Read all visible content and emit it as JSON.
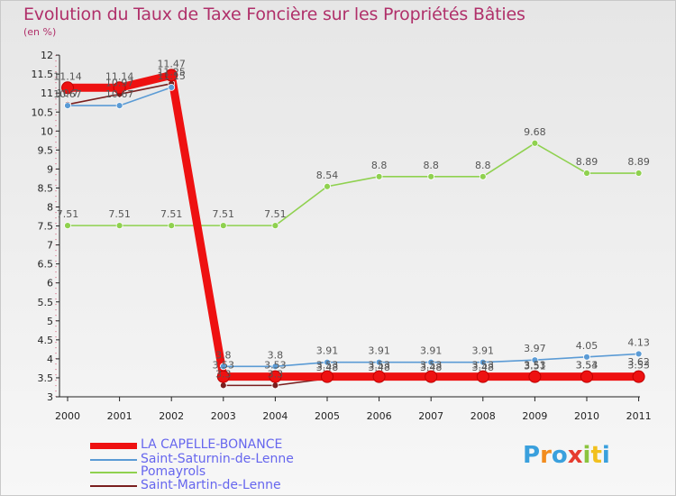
{
  "title": "Evolution du Taux de Taxe Foncière sur les Propriétés Bâties",
  "unit": "(en %)",
  "logo_text": "Proxiti",
  "chart_data": {
    "type": "line",
    "title": "Evolution du Taux de Taxe Foncière sur les Propriétés Bâties",
    "ylabel": "(en %)",
    "xlabel": "",
    "categories": [
      "2000",
      "2001",
      "2002",
      "2003",
      "2004",
      "2005",
      "2006",
      "2007",
      "2008",
      "2009",
      "2010",
      "2011"
    ],
    "ylim": [
      3,
      12
    ],
    "yticks": [
      "3",
      "3.5",
      "4",
      "4.5",
      "5",
      "5.5",
      "6",
      "6.5",
      "7",
      "7.5",
      "8",
      "8.5",
      "9",
      "9.5",
      "10",
      "10.5",
      "11",
      "11.5",
      "12"
    ],
    "series": [
      {
        "name": "Saint-Martin-de-Lenne",
        "color": "#7a1f1f",
        "values": [
          10.7,
          10.97,
          11.25,
          3.3,
          3.3,
          3.48,
          3.48,
          3.48,
          3.48,
          3.51,
          3.54,
          3.62
        ],
        "labels": [
          "10.7",
          "10.97",
          "11.25",
          "3.3",
          "3.3",
          "3.48",
          "3.48",
          "3.48",
          "3.48",
          "3.51",
          "3.54",
          "3.62"
        ]
      },
      {
        "name": "Pomayrols",
        "color": "#8fd14f",
        "values": [
          7.51,
          7.51,
          7.51,
          7.51,
          7.51,
          8.54,
          8.8,
          8.8,
          8.8,
          9.68,
          8.89,
          8.89
        ],
        "labels": [
          "7.51",
          "7.51",
          "7.51",
          "7.51",
          "7.51",
          "8.54",
          "8.8",
          "8.8",
          "8.8",
          "9.68",
          "8.89",
          "8.89"
        ]
      },
      {
        "name": "Saint-Saturnin-de-Lenne",
        "color": "#5b9bd5",
        "values": [
          10.67,
          10.67,
          11.15,
          3.8,
          3.8,
          3.91,
          3.91,
          3.91,
          3.91,
          3.97,
          4.05,
          4.13
        ],
        "labels": [
          "10.67",
          "10.67",
          "11.15",
          "3.8",
          "3.8",
          "3.91",
          "3.91",
          "3.91",
          "3.91",
          "3.97",
          "4.05",
          "4.13"
        ]
      },
      {
        "name": "LA CAPELLE-BONANCE",
        "color": "#ee1111",
        "values": [
          11.14,
          11.14,
          11.47,
          3.53,
          3.53,
          3.53,
          3.53,
          3.53,
          3.53,
          3.53,
          3.53,
          3.53
        ],
        "labels": [
          "11.14",
          "11.14",
          "11.47",
          "3.53",
          "3.53",
          "3.53",
          "3.53",
          "3.53",
          "3.53",
          "3.53",
          "3.53",
          "3.53"
        ]
      }
    ],
    "legend": [
      {
        "name": "LA CAPELLE-BONANCE",
        "color": "#ee1111",
        "text_color": "#6666ee"
      },
      {
        "name": "Saint-Saturnin-de-Lenne",
        "color": "#5b9bd5",
        "text_color": "#6666ee"
      },
      {
        "name": "Pomayrols",
        "color": "#8fd14f",
        "text_color": "#6666ee"
      },
      {
        "name": "Saint-Martin-de-Lenne",
        "color": "#7a1f1f",
        "text_color": "#6666ee"
      }
    ],
    "legend_position": "bottom-left"
  }
}
